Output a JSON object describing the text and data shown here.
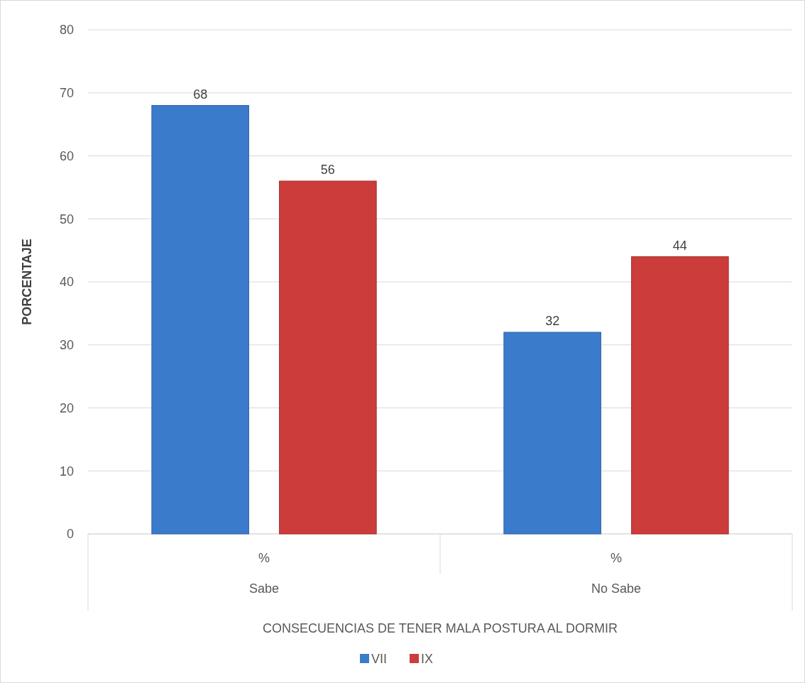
{
  "chart_data": {
    "type": "bar",
    "xlabel": "CONSECUENCIAS DE TENER MALA POSTURA AL DORMIR",
    "ylabel": "PORCENTAJE",
    "categories": [
      "Sabe",
      "No Sabe"
    ],
    "series": [
      {
        "name": "VII",
        "color": "#3b7bcc",
        "values": [
          68,
          32
        ]
      },
      {
        "name": "IX",
        "color": "#cc3c3a",
        "values": [
          56,
          44
        ]
      }
    ],
    "annotations": [
      "%",
      "%"
    ],
    "ylim": [
      0,
      80
    ],
    "yticks": [
      0,
      10,
      20,
      30,
      40,
      50,
      60,
      70,
      80
    ],
    "grid": "y",
    "legend": "bottom",
    "data_labels": true
  }
}
